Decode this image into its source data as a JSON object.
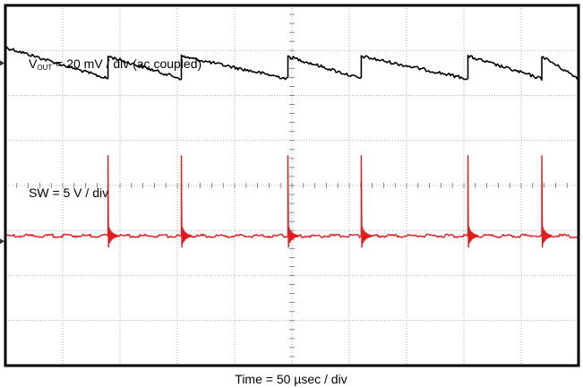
{
  "chart_data": {
    "type": "line",
    "time_label": "Time = 50 µsec / div",
    "grid": true,
    "divisions": {
      "x": 10,
      "y": 8
    },
    "series": [
      {
        "name": "VOUT",
        "label_main": "V",
        "label_sub": "OUT",
        "label_rest": " = 20 mV / div (ac coupled)",
        "color": "#000000",
        "scale": "20 mV / div",
        "ripple_divs": 0.5,
        "switch_times_divs": [
          1.79,
          3.07,
          4.93,
          6.21,
          8.07,
          9.36
        ],
        "sawtooth_start_div": 1.13,
        "sawtooth_end_div": 1.63,
        "reference_div": 1.28
      },
      {
        "name": "SW",
        "label": "SW = 5 V / div",
        "color": "#e41a1c",
        "scale": "5 V / div",
        "spike_times_divs": [
          1.79,
          3.07,
          4.93,
          6.21,
          8.07,
          9.36
        ],
        "baseline_div": 5.12,
        "spike_peak_div": 3.34,
        "reference_div": 5.24
      }
    ]
  }
}
